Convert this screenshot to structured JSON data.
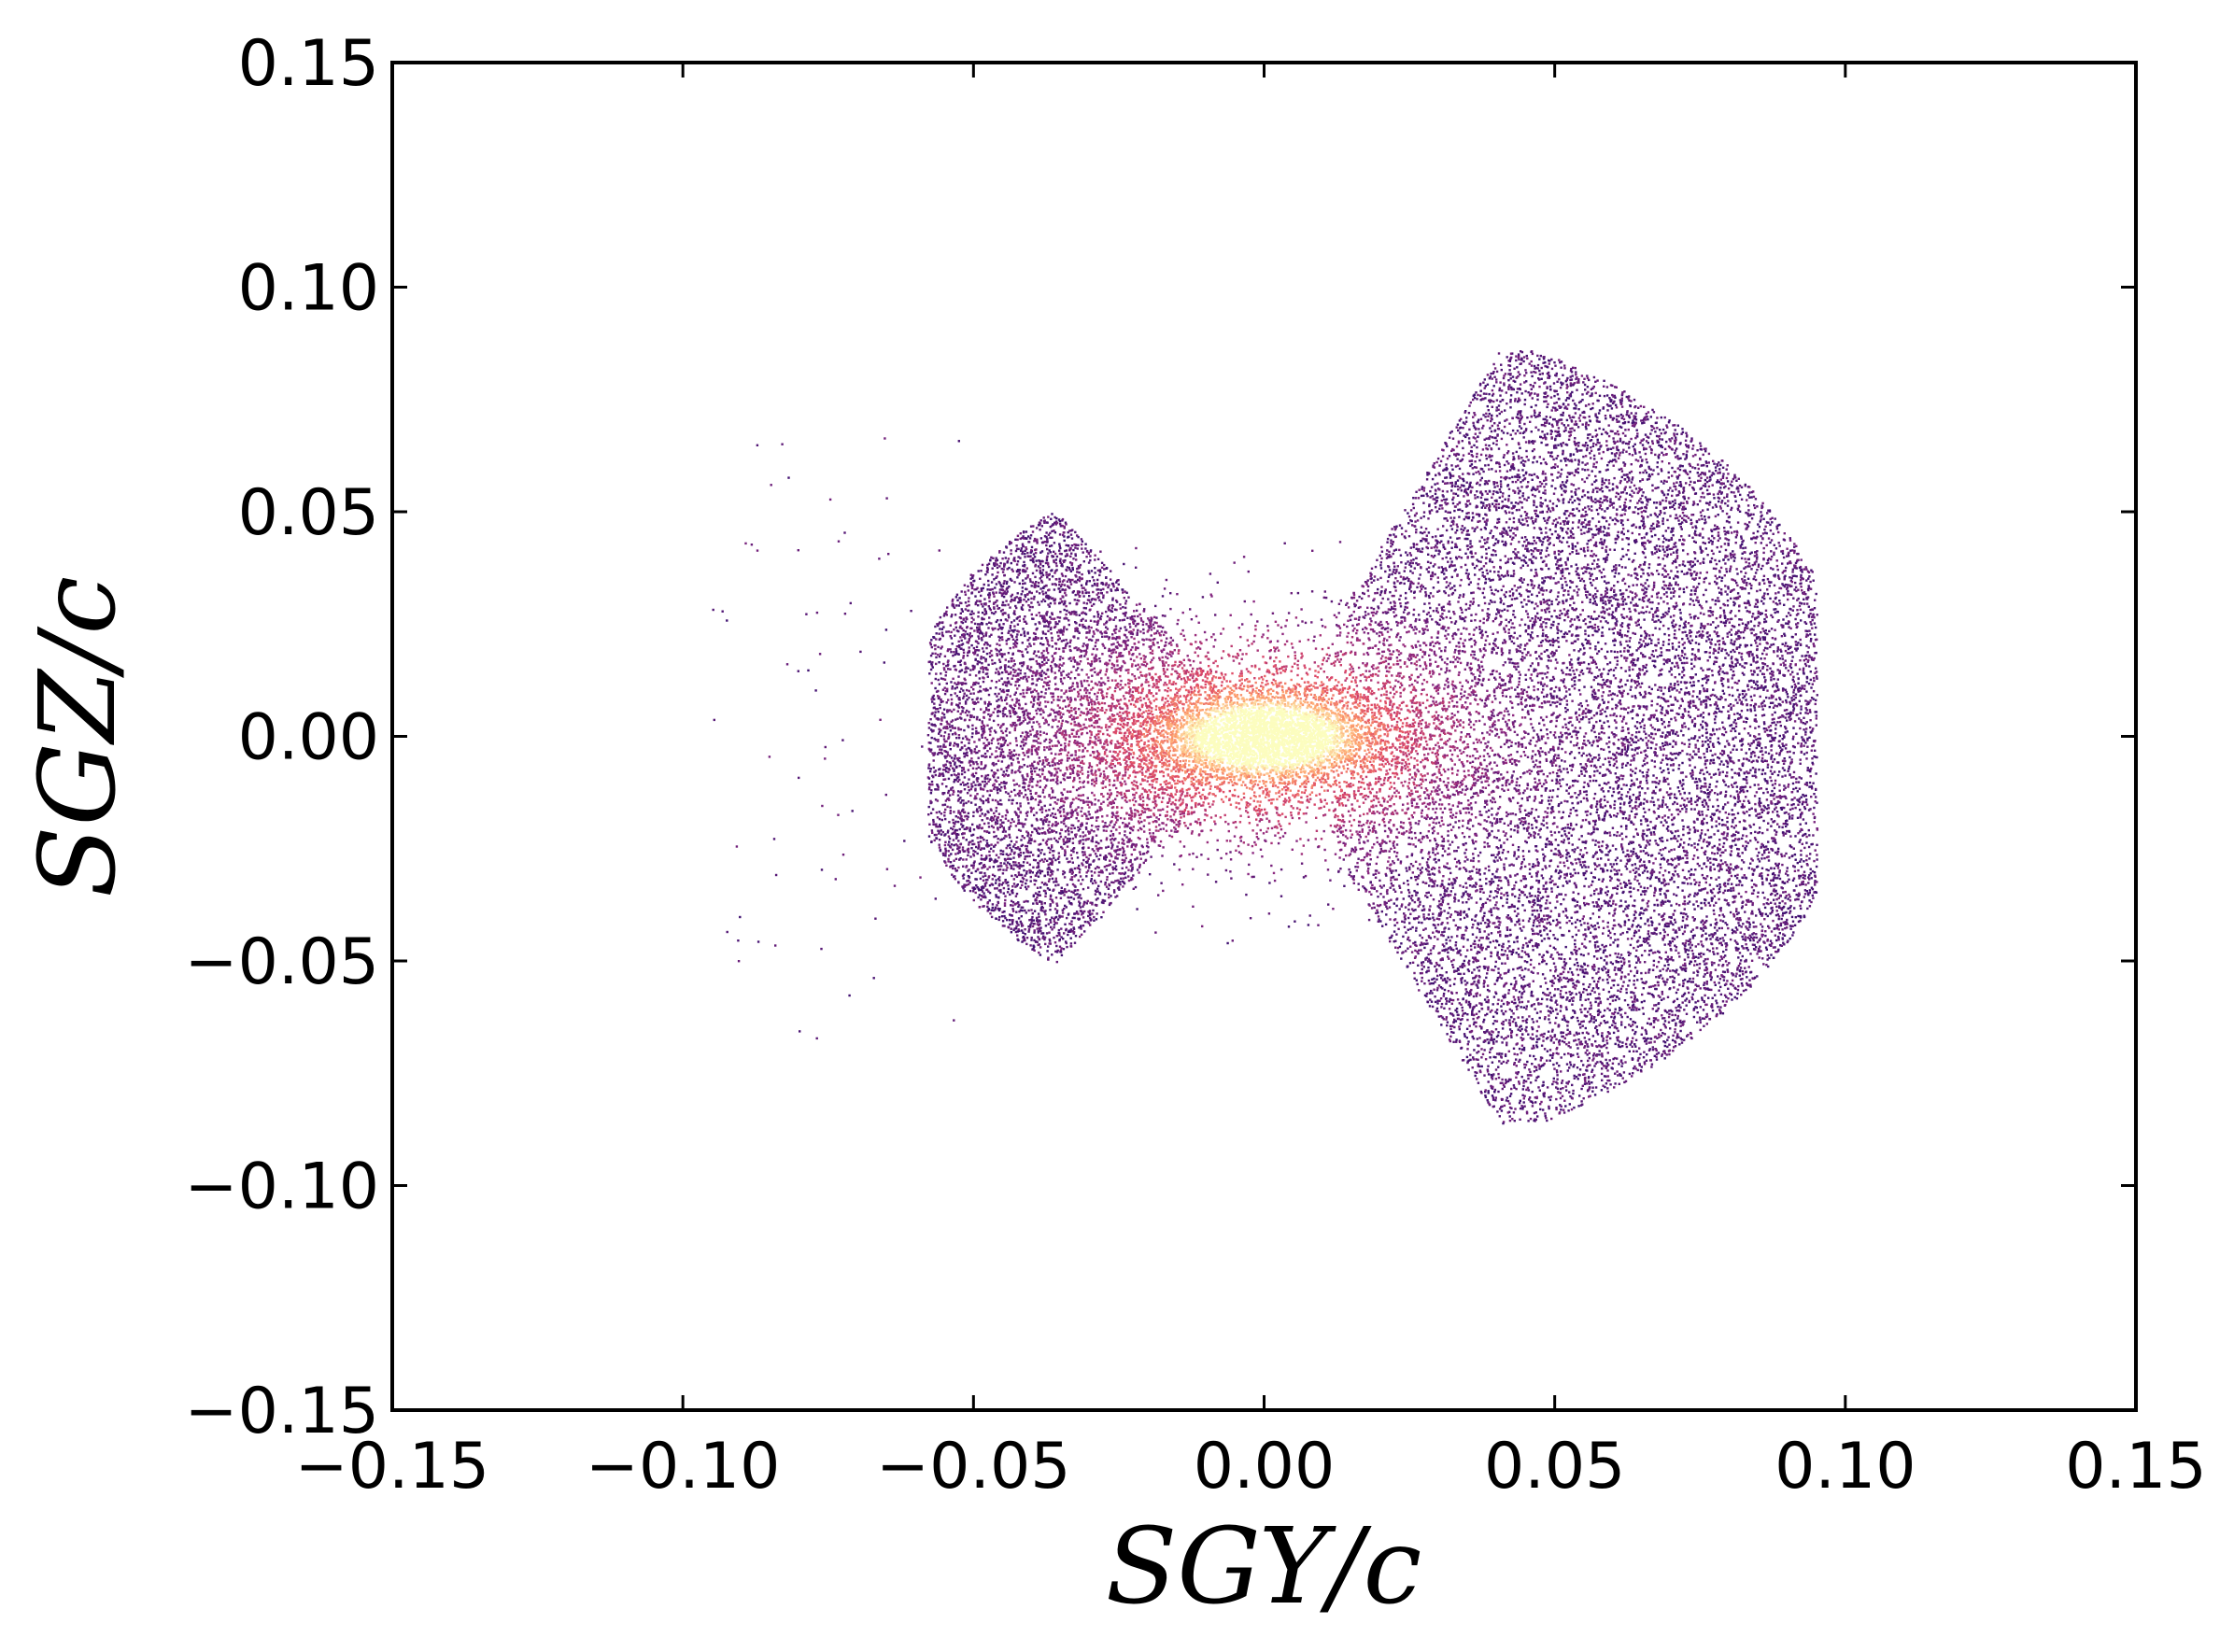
{
  "chart_data": {
    "type": "scatter",
    "xlabel": "SGY/c",
    "ylabel": "SGZ/c",
    "xlim": [
      -0.15,
      0.15
    ],
    "ylim": [
      -0.15,
      0.15
    ],
    "x_ticks": [
      "−0.15",
      "−0.10",
      "−0.05",
      "0.00",
      "0.05",
      "0.10",
      "0.15"
    ],
    "y_ticks": [
      "−0.15",
      "−0.10",
      "−0.05",
      "0.00",
      "0.05",
      "0.10",
      "0.15"
    ],
    "x_tick_values": [
      -0.15,
      -0.1,
      -0.05,
      0.0,
      0.05,
      0.1,
      0.15
    ],
    "y_tick_values": [
      -0.15,
      -0.1,
      -0.05,
      0.0,
      0.05,
      0.1,
      0.15
    ],
    "grid": false,
    "legend": "none",
    "colormap": [
      "#000004",
      "#3b0f70",
      "#8c2981",
      "#de4968",
      "#fe9f6d",
      "#fcfdbf"
    ],
    "approx_point_count": 30000,
    "point_clusters": [
      {
        "region": "left-cone",
        "x_range": [
          -0.058,
          -0.008
        ],
        "y_range": [
          -0.048,
          0.05
        ]
      },
      {
        "region": "right-fan",
        "x_range": [
          0.01,
          0.094
        ],
        "y_range": [
          -0.085,
          0.085
        ]
      },
      {
        "region": "core",
        "center": [
          0.0,
          0.0
        ],
        "spread": [
          0.012,
          0.006
        ]
      }
    ]
  }
}
